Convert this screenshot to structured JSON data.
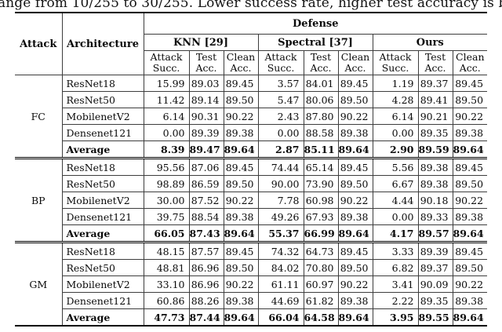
{
  "caption": "ange from 10/255 to 30/255. Lower success rate, higher test accuracy is bett",
  "colors": {
    "background": "#ffffff",
    "text": "#0a0a0a",
    "rule_thin": "#3d3d3d",
    "rule_thick": "#000000"
  },
  "table": {
    "headers": {
      "attack": "Attack",
      "architecture": "Architecture",
      "defense": "Defense",
      "groups": [
        {
          "label": "KNN [29]"
        },
        {
          "label": "Spectral [37]"
        },
        {
          "label": "Ours"
        }
      ],
      "sub_headers": [
        {
          "top": "Attack",
          "bottom": "Succ."
        },
        {
          "top": "Test",
          "bottom": "Acc."
        },
        {
          "top": "Clean",
          "bottom": "Acc."
        }
      ]
    },
    "blocks": [
      {
        "attack": "FC",
        "rows": [
          {
            "arch": "ResNet18",
            "bold": false,
            "values": [
              "15.99",
              "89.03",
              "89.45",
              "3.57",
              "84.01",
              "89.45",
              "1.19",
              "89.37",
              "89.45"
            ]
          },
          {
            "arch": "ResNet50",
            "bold": false,
            "values": [
              "11.42",
              "89.14",
              "89.50",
              "5.47",
              "80.06",
              "89.50",
              "4.28",
              "89.41",
              "89.50"
            ]
          },
          {
            "arch": "MobilenetV2",
            "bold": false,
            "values": [
              "6.14",
              "90.31",
              "90.22",
              "2.43",
              "87.80",
              "90.22",
              "6.14",
              "90.21",
              "90.22"
            ]
          },
          {
            "arch": "Densenet121",
            "bold": false,
            "values": [
              "0.00",
              "89.39",
              "89.38",
              "0.00",
              "88.58",
              "89.38",
              "0.00",
              "89.35",
              "89.38"
            ]
          },
          {
            "arch": "Average",
            "bold": true,
            "values": [
              "8.39",
              "89.47",
              "89.64",
              "2.87",
              "85.11",
              "89.64",
              "2.90",
              "89.59",
              "89.64"
            ]
          }
        ]
      },
      {
        "attack": "BP",
        "rows": [
          {
            "arch": "ResNet18",
            "bold": false,
            "values": [
              "95.56",
              "87.06",
              "89.45",
              "74.44",
              "65.14",
              "89.45",
              "5.56",
              "89.38",
              "89.45"
            ]
          },
          {
            "arch": "ResNet50",
            "bold": false,
            "values": [
              "98.89",
              "86.59",
              "89.50",
              "90.00",
              "73.90",
              "89.50",
              "6.67",
              "89.38",
              "89.50"
            ]
          },
          {
            "arch": "MobilenetV2",
            "bold": false,
            "values": [
              "30.00",
              "87.52",
              "90.22",
              "7.78",
              "60.98",
              "90.22",
              "4.44",
              "90.18",
              "90.22"
            ]
          },
          {
            "arch": "Densenet121",
            "bold": false,
            "values": [
              "39.75",
              "88.54",
              "89.38",
              "49.26",
              "67.93",
              "89.38",
              "0.00",
              "89.33",
              "89.38"
            ]
          },
          {
            "arch": "Average",
            "bold": true,
            "values": [
              "66.05",
              "87.43",
              "89.64",
              "55.37",
              "66.99",
              "89.64",
              "4.17",
              "89.57",
              "89.64"
            ]
          }
        ]
      },
      {
        "attack": "GM",
        "rows": [
          {
            "arch": "ResNet18",
            "bold": false,
            "values": [
              "48.15",
              "87.57",
              "89.45",
              "74.32",
              "64.73",
              "89.45",
              "3.33",
              "89.39",
              "89.45"
            ]
          },
          {
            "arch": "ResNet50",
            "bold": false,
            "values": [
              "48.81",
              "86.96",
              "89.50",
              "84.02",
              "70.80",
              "89.50",
              "6.82",
              "89.37",
              "89.50"
            ]
          },
          {
            "arch": "MobilenetV2",
            "bold": false,
            "values": [
              "33.10",
              "86.96",
              "90.22",
              "61.11",
              "60.97",
              "90.22",
              "3.41",
              "90.09",
              "90.22"
            ]
          },
          {
            "arch": "Densenet121",
            "bold": false,
            "values": [
              "60.86",
              "88.26",
              "89.38",
              "44.69",
              "61.82",
              "89.38",
              "2.22",
              "89.35",
              "89.38"
            ]
          },
          {
            "arch": "Average",
            "bold": true,
            "values": [
              "47.73",
              "87.44",
              "89.64",
              "66.04",
              "64.58",
              "89.64",
              "3.95",
              "89.55",
              "89.64"
            ]
          }
        ]
      }
    ]
  }
}
